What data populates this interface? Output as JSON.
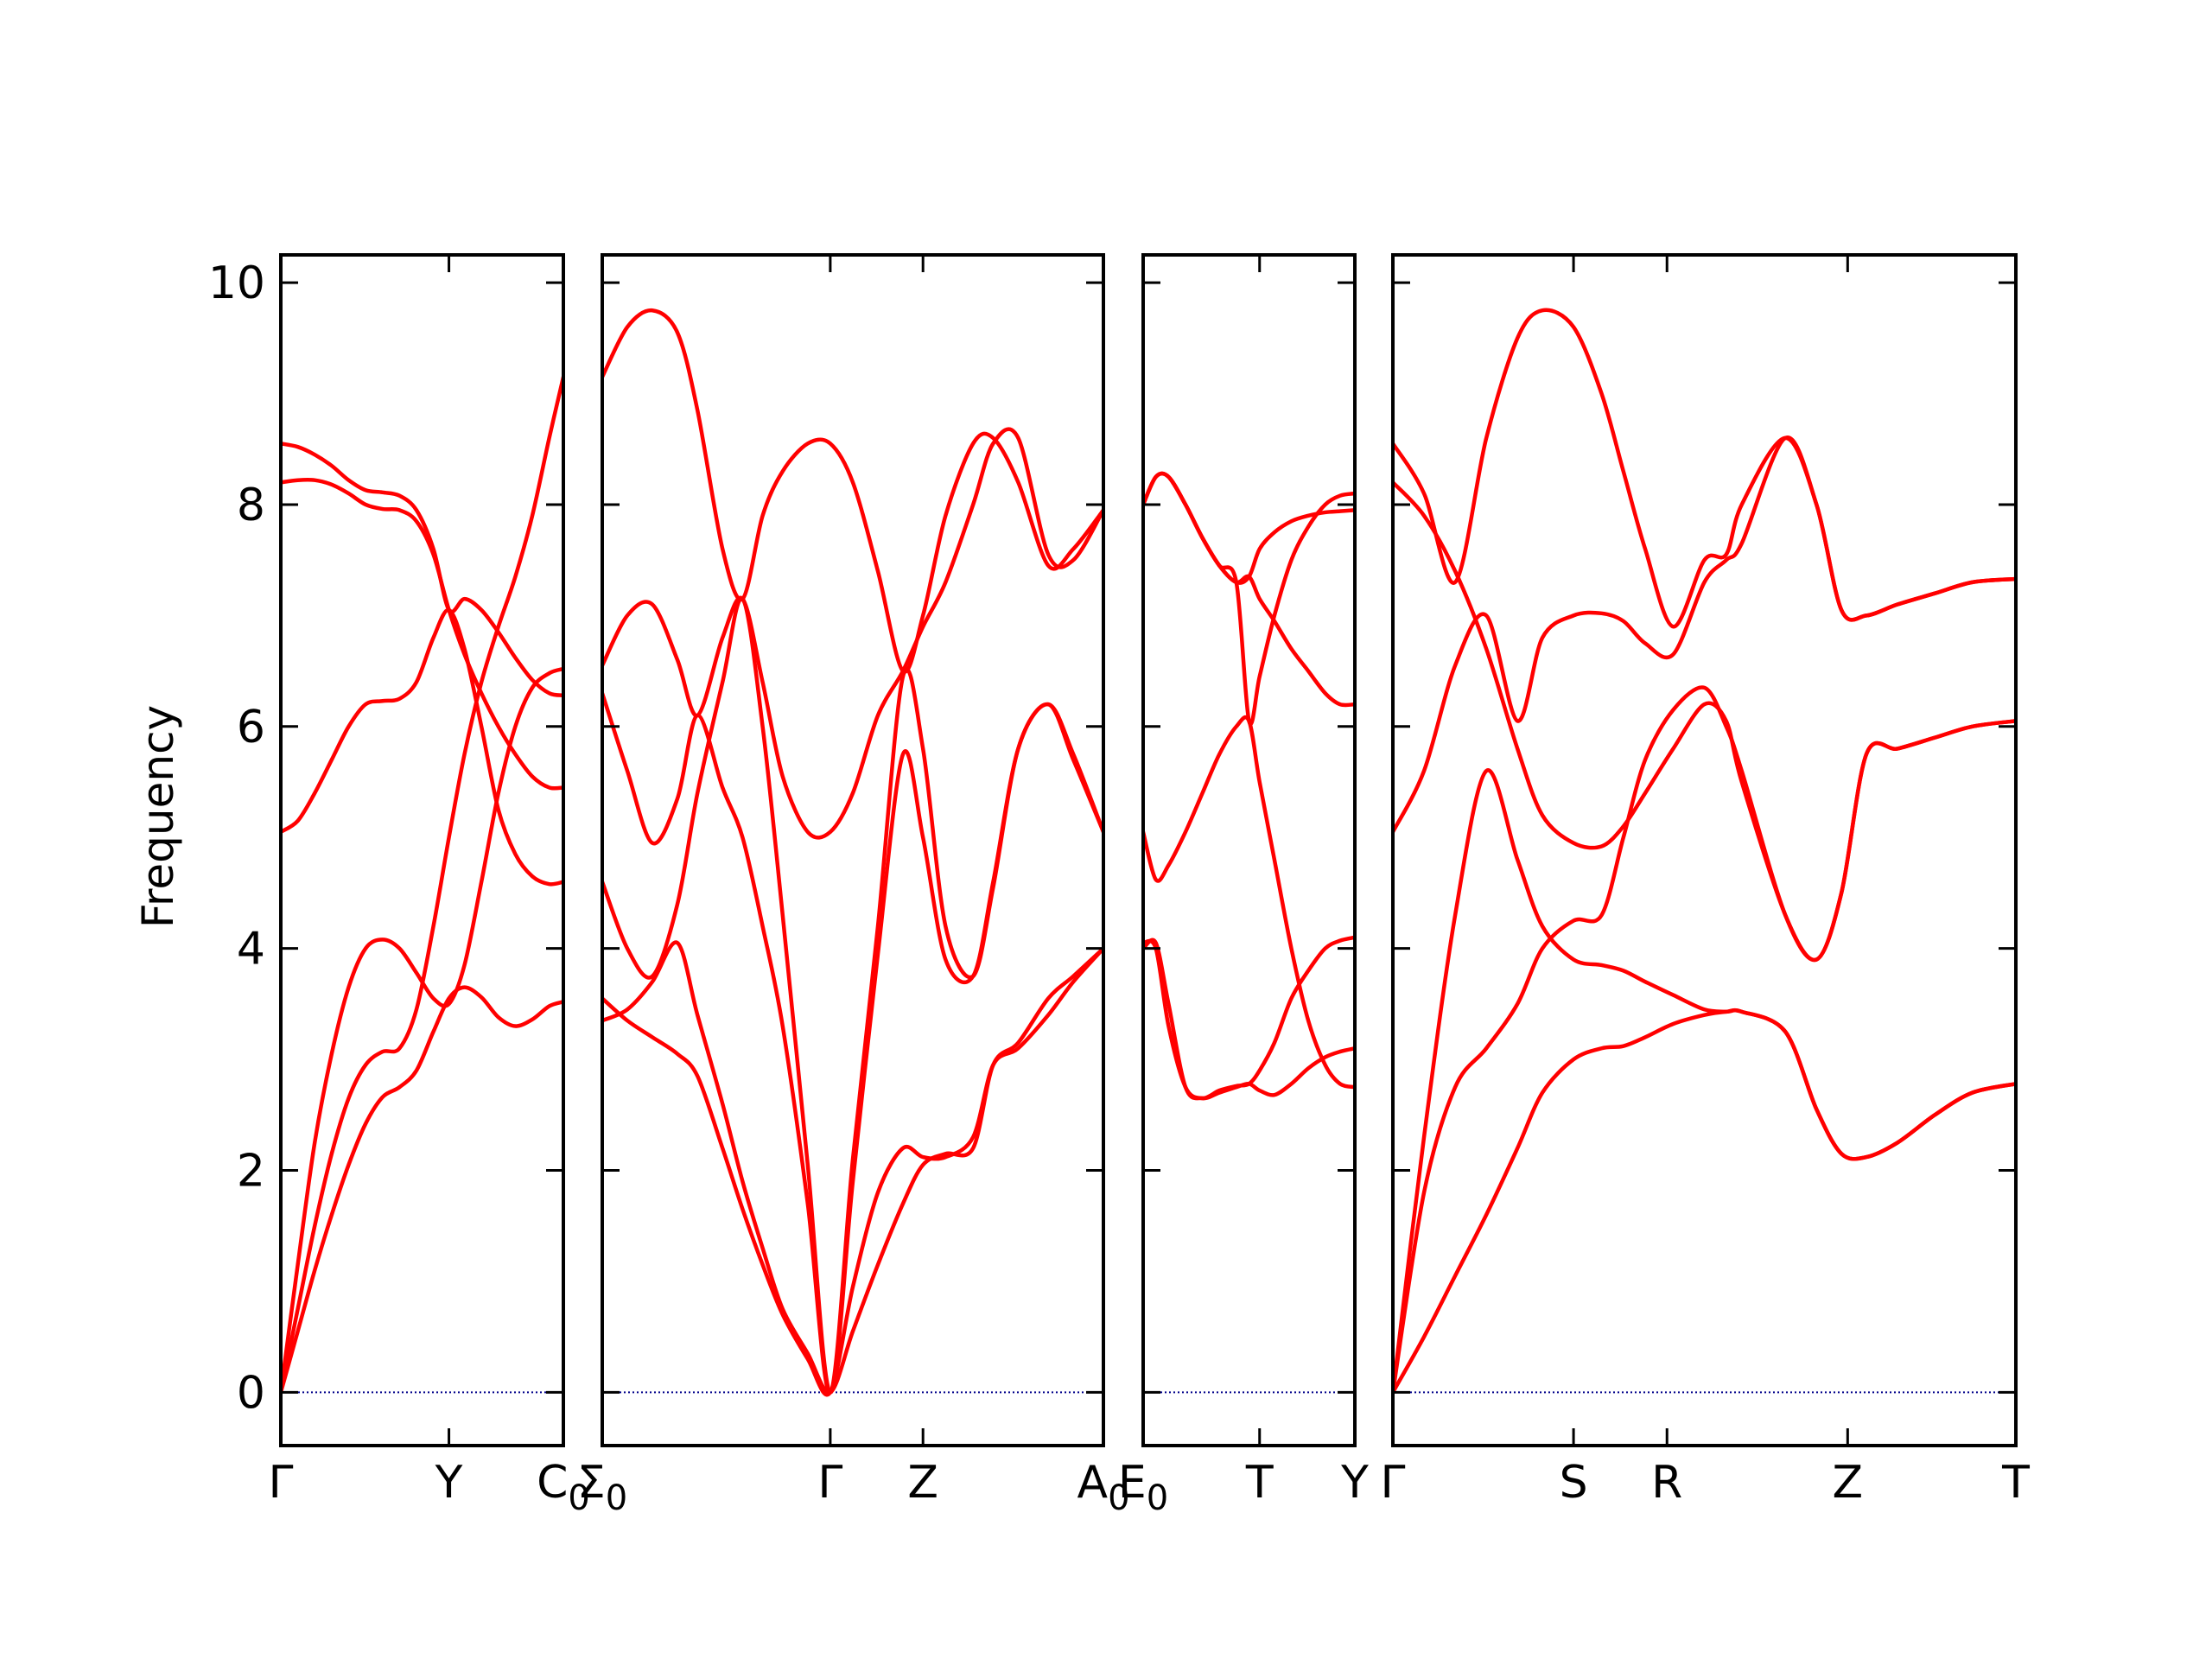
{
  "colors": {
    "band": "#ff0000",
    "zero_line": "#00008b",
    "frame": "#000000"
  },
  "chart_data": {
    "type": "line",
    "title": "",
    "ylabel": "Frequency",
    "ylim": [
      -0.48,
      10.25
    ],
    "yticks": [
      "0",
      "2",
      "4",
      "6",
      "8",
      "10"
    ],
    "grid": false,
    "legend": "none",
    "panels": [
      {
        "name": "Γ-Y-C0",
        "tick_labels": [
          "Γ",
          "Y",
          "C0"
        ],
        "x": [
          0.0,
          0.06,
          0.12,
          0.18,
          0.24,
          0.3,
          0.36,
          0.42,
          0.48,
          0.54,
          0.595,
          0.65,
          0.71,
          0.77,
          0.83,
          0.89,
          0.95,
          1.0
        ],
        "series": [
          {
            "values": [
              0.0,
              0.55,
              1.1,
              1.6,
              2.05,
              2.42,
              2.66,
              2.75,
              2.9,
              3.25,
              3.55,
              3.65,
              3.56,
              3.38,
              3.3,
              3.36,
              3.48,
              3.52
            ]
          },
          {
            "values": [
              0.0,
              0.75,
              1.5,
              2.15,
              2.65,
              2.95,
              3.07,
              3.1,
              3.45,
              4.2,
              5.0,
              5.75,
              6.4,
              6.9,
              7.35,
              7.9,
              8.6,
              9.15
            ]
          },
          {
            "values": [
              0.0,
              1.15,
              2.25,
              3.05,
              3.65,
              4.0,
              4.08,
              4.0,
              3.78,
              3.55,
              3.5,
              3.85,
              4.6,
              5.4,
              6.0,
              6.35,
              6.48,
              6.52
            ]
          },
          {
            "values": [
              5.05,
              5.15,
              5.4,
              5.7,
              6.0,
              6.2,
              6.23,
              6.25,
              6.4,
              6.8,
              7.05,
              6.7,
              6.0,
              5.25,
              4.85,
              4.65,
              4.58,
              4.6
            ]
          },
          {
            "values": [
              8.2,
              8.22,
              8.22,
              8.18,
              8.1,
              8.0,
              7.96,
              7.95,
              7.85,
              7.55,
              7.05,
              6.65,
              6.3,
              6.0,
              5.75,
              5.55,
              5.45,
              5.45
            ]
          },
          {
            "values": [
              8.55,
              8.52,
              8.45,
              8.35,
              8.22,
              8.13,
              8.11,
              8.08,
              7.95,
              7.6,
              7.05,
              7.15,
              7.05,
              6.85,
              6.62,
              6.42,
              6.3,
              6.28
            ]
          }
        ]
      },
      {
        "name": "Σ0-Γ-Z-A0",
        "tick_labels": [
          "Σ0",
          "Γ",
          "Z",
          "A0"
        ],
        "x": [
          0.0,
          0.05,
          0.1,
          0.15,
          0.19,
          0.24,
          0.28,
          0.32,
          0.36,
          0.41,
          0.455,
          0.5,
          0.55,
          0.6,
          0.64,
          0.685,
          0.74,
          0.78,
          0.83,
          0.89,
          0.94,
          1.0
        ],
        "series": [
          {
            "values": [
              3.55,
              3.35,
              3.2,
              3.05,
              2.85,
              2.2,
              1.65,
              1.15,
              0.7,
              0.3,
              0.0,
              0.95,
              1.8,
              2.2,
              2.12,
              2.12,
              2.3,
              2.95,
              3.1,
              3.4,
              3.7,
              4.0
            ]
          },
          {
            "values": [
              3.35,
              3.45,
              3.7,
              4.05,
              3.4,
              2.6,
              1.9,
              1.3,
              0.75,
              0.35,
              0.0,
              0.55,
              1.15,
              1.7,
              2.05,
              2.15,
              2.2,
              2.95,
              3.15,
              3.55,
              3.75,
              4.0
            ]
          },
          {
            "values": [
              4.6,
              4.0,
              3.75,
              4.4,
              5.4,
              6.4,
              7.15,
              6.0,
              4.3,
              2.05,
              0.0,
              1.9,
              3.95,
              5.75,
              5.0,
              3.9,
              3.75,
              4.6,
              5.8,
              6.2,
              5.7,
              5.05
            ]
          },
          {
            "values": [
              6.3,
              5.6,
              4.95,
              5.35,
              6.1,
              5.45,
              5.0,
              4.2,
              3.3,
              1.7,
              0.0,
              2.1,
              4.2,
              6.45,
              5.8,
              4.2,
              3.75,
              4.55,
              5.8,
              6.2,
              5.75,
              5.05
            ]
          },
          {
            "values": [
              6.55,
              7.0,
              7.1,
              6.6,
              6.1,
              6.8,
              7.15,
              6.4,
              5.55,
              5.05,
              5.05,
              5.4,
              6.1,
              6.5,
              6.9,
              7.3,
              8.0,
              8.55,
              8.6,
              7.55,
              7.5,
              7.95
            ]
          },
          {
            "values": [
              9.15,
              9.6,
              9.75,
              9.55,
              8.85,
              7.6,
              7.15,
              7.9,
              8.3,
              8.55,
              8.55,
              8.2,
              7.4,
              6.5,
              7.0,
              7.9,
              8.55,
              8.6,
              8.2,
              7.45,
              7.6,
              7.95
            ]
          }
        ]
      },
      {
        "name": "E0-T-Y",
        "tick_labels": [
          "E0",
          "T",
          "Y"
        ],
        "x": [
          0.0,
          0.06,
          0.12,
          0.2,
          0.28,
          0.36,
          0.44,
          0.5,
          0.55,
          0.62,
          0.7,
          0.78,
          0.86,
          0.93,
          1.0
        ],
        "series": [
          {
            "values": [
              4.0,
              4.05,
              3.5,
              2.75,
              2.65,
              2.7,
              2.75,
              2.78,
              2.72,
              2.68,
              2.78,
              2.92,
              3.02,
              3.07,
              3.1
            ]
          },
          {
            "values": [
              4.05,
              4.0,
              3.3,
              2.75,
              2.65,
              2.72,
              2.76,
              2.78,
              2.9,
              3.15,
              3.55,
              3.8,
              4.0,
              4.07,
              4.1
            ]
          },
          {
            "values": [
              5.05,
              4.62,
              4.75,
              5.05,
              5.4,
              5.75,
              6.0,
              6.05,
              5.5,
              4.8,
              4.0,
              3.35,
              2.95,
              2.78,
              2.75
            ]
          },
          {
            "values": [
              8.0,
              8.25,
              8.25,
              8.0,
              7.7,
              7.45,
              7.3,
              7.35,
              7.15,
              6.95,
              6.7,
              6.5,
              6.3,
              6.2,
              6.2
            ]
          },
          {
            "values": [
              8.0,
              8.25,
              8.25,
              8.0,
              7.7,
              7.45,
              7.3,
              7.35,
              7.6,
              7.75,
              7.85,
              7.9,
              7.93,
              7.94,
              7.95
            ]
          },
          {
            "values": [
              8.0,
              8.25,
              8.25,
              8.0,
              7.7,
              7.45,
              7.3,
              6.05,
              6.45,
              7.0,
              7.5,
              7.8,
              8.0,
              8.08,
              8.1
            ]
          }
        ]
      },
      {
        "name": "Γ-S-R-Z-T",
        "tick_labels": [
          "Γ",
          "S",
          "R",
          "Z",
          "T"
        ],
        "x": [
          0.0,
          0.05,
          0.1,
          0.15,
          0.2,
          0.24,
          0.29,
          0.335,
          0.37,
          0.405,
          0.45,
          0.5,
          0.535,
          0.56,
          0.63,
          0.68,
          0.72,
          0.76,
          0.81,
          0.87,
          0.93,
          1.0
        ],
        "series": [
          {
            "values": [
              0.0,
              0.5,
              1.05,
              1.6,
              2.2,
              2.7,
              3.0,
              3.1,
              3.12,
              3.2,
              3.32,
              3.4,
              3.43,
              3.43,
              3.25,
              2.55,
              2.15,
              2.12,
              2.25,
              2.5,
              2.7,
              2.78
            ]
          },
          {
            "values": [
              0.0,
              1.8,
              2.75,
              3.1,
              3.5,
              4.0,
              4.25,
              4.3,
              5.0,
              5.7,
              6.15,
              6.35,
              6.0,
              5.6,
              4.3,
              3.9,
              4.5,
              5.75,
              5.8,
              5.9,
              6.0,
              6.05
            ]
          },
          {
            "values": [
              0.0,
              2.3,
              4.3,
              5.6,
              4.8,
              4.2,
              3.9,
              3.85,
              3.8,
              3.7,
              3.58,
              3.45,
              3.43,
              3.43,
              3.25,
              2.55,
              2.15,
              2.12,
              2.25,
              2.5,
              2.7,
              2.78
            ]
          },
          {
            "values": [
              5.05,
              5.6,
              6.55,
              7.0,
              6.05,
              6.8,
              7.0,
              7.02,
              6.95,
              6.75,
              6.65,
              7.3,
              7.5,
              7.65,
              8.6,
              8.0,
              7.05,
              7.0,
              7.1,
              7.2,
              7.3,
              7.33
            ]
          },
          {
            "values": [
              8.2,
              7.9,
              7.4,
              6.7,
              5.8,
              5.2,
              4.95,
              4.92,
              5.1,
              5.4,
              5.8,
              6.2,
              6.05,
              5.5,
              4.3,
              3.9,
              4.5,
              5.75,
              5.8,
              5.9,
              6.0,
              6.05
            ]
          },
          {
            "values": [
              8.55,
              8.1,
              7.3,
              8.6,
              9.5,
              9.75,
              9.6,
              9.0,
              8.3,
              7.6,
              6.9,
              7.5,
              7.55,
              8.0,
              8.6,
              8.0,
              7.05,
              7.0,
              7.1,
              7.2,
              7.3,
              7.33
            ]
          }
        ]
      }
    ]
  }
}
